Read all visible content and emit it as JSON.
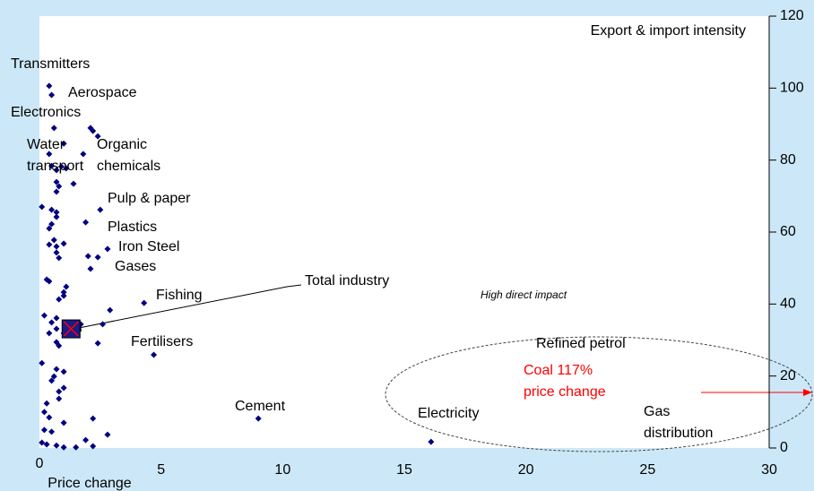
{
  "chart_data": {
    "type": "scatter",
    "x_label": "Price change",
    "y_label": "Export & import intensity",
    "xlim": [
      0,
      30
    ],
    "xticks": [
      0,
      5,
      10,
      15,
      20,
      25,
      30
    ],
    "ylim": [
      0,
      120
    ],
    "yticks": [
      0,
      20,
      40,
      60,
      80,
      100,
      120
    ],
    "series": [
      {
        "color": "#000080",
        "x": [
          0.4,
          0.5,
          0.6,
          2.1,
          2.2,
          2.4,
          1.8,
          0.4,
          1.0,
          0.5,
          0.7,
          0.9,
          1.1,
          0.7,
          0.8,
          0.7,
          1.4,
          0.1,
          0.5,
          0.7,
          0.7,
          2.5,
          1.9,
          0.5,
          0.4,
          0.6,
          0.7,
          0.4,
          1.0,
          0.7,
          0.8,
          2.0,
          2.4,
          2.8,
          2.1,
          0.3,
          0.4,
          1.1,
          1.0,
          1.0,
          0.8,
          4.3,
          2.9,
          0.2,
          0.7,
          0.5,
          0.4,
          0.7,
          1.0,
          1.7,
          2.6,
          0.7,
          0.8,
          2.4,
          4.7,
          0.1,
          0.7,
          1.0,
          0.6,
          0.5,
          0.8,
          1.0,
          0.8,
          0.3,
          0.2,
          0.4,
          1.0,
          2.2,
          0.2,
          0.5,
          2.8,
          1.9,
          0.1,
          0.3,
          0.7,
          1.0,
          1.5,
          2.2,
          9.0,
          16.1
        ],
        "values": [
          100.6,
          98.1,
          88.9,
          88.9,
          88.1,
          86.6,
          81.7,
          81.7,
          84.6,
          78.4,
          77.2,
          78.2,
          77.7,
          73.9,
          72.7,
          71.2,
          73.4,
          67.0,
          66.2,
          65.5,
          64.2,
          66.2,
          62.7,
          62.2,
          61.0,
          57.8,
          56.0,
          56.5,
          56.8,
          54.3,
          52.8,
          53.3,
          53.0,
          55.3,
          49.8,
          46.8,
          46.3,
          44.8,
          43.3,
          42.3,
          41.3,
          40.3,
          38.3,
          36.8,
          36.1,
          34.9,
          31.9,
          33.1,
          31.9,
          34.4,
          34.4,
          29.4,
          28.4,
          29.1,
          25.9,
          23.6,
          21.9,
          21.2,
          19.9,
          18.7,
          15.7,
          16.7,
          13.7,
          12.4,
          10.0,
          8.5,
          7.0,
          8.2,
          5.0,
          4.5,
          3.7,
          2.2,
          1.5,
          1.0,
          0.7,
          0.2,
          0.2,
          0.5,
          8.2,
          1.7
        ]
      }
    ],
    "highlight": {
      "x": 1.3,
      "y": 33.1,
      "color": "#1a1a8c"
    },
    "annotations": [
      {
        "lines": [
          "Transmitters"
        ]
      },
      {
        "lines": [
          "Aerospace"
        ]
      },
      {
        "lines": [
          "Electronics"
        ]
      },
      {
        "lines": [
          "Water",
          "transport"
        ]
      },
      {
        "lines": [
          "Organic",
          "chemicals"
        ]
      },
      {
        "lines": [
          "Pulp & paper"
        ]
      },
      {
        "lines": [
          "Plastics"
        ]
      },
      {
        "lines": [
          "Iron Steel"
        ]
      },
      {
        "lines": [
          "Gases"
        ]
      },
      {
        "lines": [
          "Fishing"
        ]
      },
      {
        "lines": [
          "Total industry"
        ]
      },
      {
        "lines": [
          "High direct impact"
        ]
      },
      {
        "lines": [
          "Fertilisers"
        ]
      },
      {
        "lines": [
          "Refined petrol"
        ]
      },
      {
        "lines": [
          "Coal 117%",
          "price change"
        ],
        "color": "#ff0000"
      },
      {
        "lines": [
          "Cement"
        ]
      },
      {
        "lines": [
          "Electricity"
        ]
      },
      {
        "lines": [
          "Gas",
          "distribution"
        ]
      }
    ]
  }
}
